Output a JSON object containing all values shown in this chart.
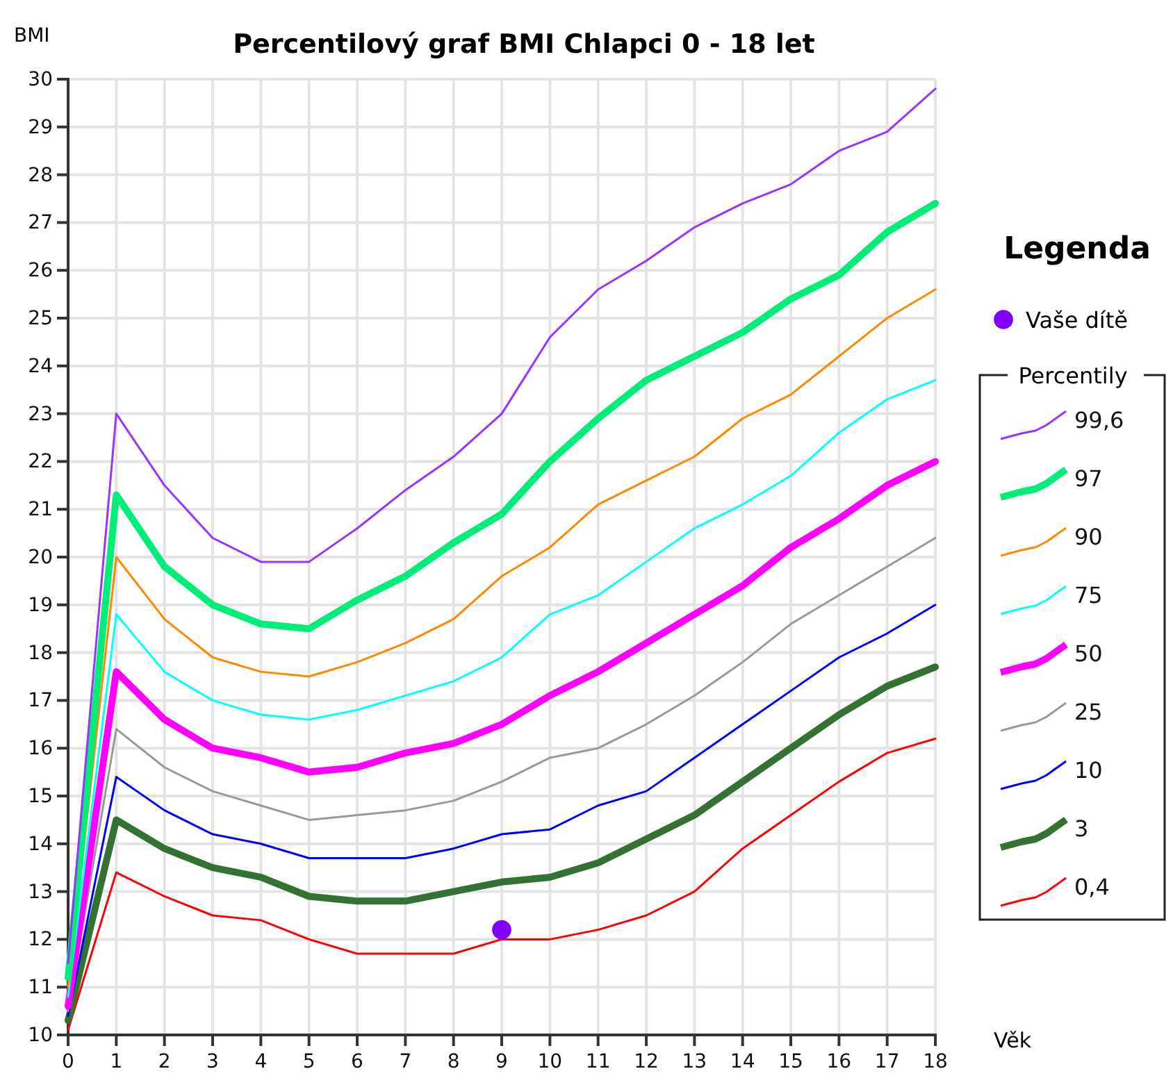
{
  "chart_data": {
    "type": "line",
    "title": "Percentilový graf BMI Chlapci 0 - 18 let",
    "xlabel": "Věk",
    "ylabel": "BMI",
    "legend_title": "Legenda",
    "annotations": [
      "Percentily"
    ],
    "x": [
      0,
      1,
      2,
      3,
      4,
      5,
      6,
      7,
      8,
      9,
      10,
      11,
      12,
      13,
      14,
      15,
      16,
      17,
      18
    ],
    "xlim": [
      0,
      18
    ],
    "xticks": [
      0,
      1,
      2,
      3,
      4,
      5,
      6,
      7,
      8,
      9,
      10,
      11,
      12,
      13,
      14,
      15,
      16,
      17,
      18
    ],
    "ylim": [
      10,
      30
    ],
    "yticks": [
      10,
      11,
      12,
      13,
      14,
      15,
      16,
      17,
      18,
      19,
      20,
      21,
      22,
      23,
      24,
      25,
      26,
      27,
      28,
      29,
      30
    ],
    "grid": true,
    "legend": "right",
    "marker": "none",
    "line_style": "solid",
    "series": [
      {
        "name": "Vaše dítě",
        "type": "scatter",
        "marker": "circle",
        "color": "#7f00ff",
        "x": [
          9
        ],
        "values": [
          12.2
        ]
      },
      {
        "name": "99,6",
        "color": "#9933ff",
        "values": [
          11.5,
          23.0,
          21.5,
          20.4,
          19.9,
          19.9,
          20.6,
          21.4,
          22.1,
          23.0,
          24.6,
          25.6,
          26.2,
          26.9,
          27.4,
          27.8,
          28.5,
          28.9,
          29.8
        ]
      },
      {
        "name": "97",
        "color": "#00ee77",
        "values": [
          11.2,
          21.3,
          19.8,
          19.0,
          18.6,
          18.5,
          19.1,
          19.6,
          20.3,
          20.9,
          22.0,
          22.9,
          23.7,
          24.2,
          24.7,
          25.4,
          25.9,
          26.8,
          27.4
        ]
      },
      {
        "name": "90",
        "color": "#ff8800",
        "values": [
          11.0,
          20.0,
          18.7,
          17.9,
          17.6,
          17.5,
          17.8,
          18.2,
          18.7,
          19.6,
          20.2,
          21.1,
          21.6,
          22.1,
          22.9,
          23.4,
          24.2,
          25.0,
          25.6
        ]
      },
      {
        "name": "75",
        "color": "#00ffff",
        "values": [
          10.8,
          18.8,
          17.6,
          17.0,
          16.7,
          16.6,
          16.8,
          17.1,
          17.4,
          17.9,
          18.8,
          19.2,
          19.9,
          20.6,
          21.1,
          21.7,
          22.6,
          23.3,
          23.7
        ]
      },
      {
        "name": "50",
        "color": "#ff00ff",
        "values": [
          10.6,
          17.6,
          16.6,
          16.0,
          15.8,
          15.5,
          15.6,
          15.9,
          16.1,
          16.5,
          17.1,
          17.6,
          18.2,
          18.8,
          19.4,
          20.2,
          20.8,
          21.5,
          22.0
        ]
      },
      {
        "name": "25",
        "color": "#999999",
        "values": [
          10.5,
          16.4,
          15.6,
          15.1,
          14.8,
          14.5,
          14.6,
          14.7,
          14.9,
          15.3,
          15.8,
          16.0,
          16.5,
          17.1,
          17.8,
          18.6,
          19.2,
          19.8,
          20.4
        ]
      },
      {
        "name": "10",
        "color": "#0000ff",
        "values": [
          10.4,
          15.4,
          14.7,
          14.2,
          14.0,
          13.7,
          13.7,
          13.7,
          13.9,
          14.2,
          14.3,
          14.8,
          15.1,
          15.8,
          16.5,
          17.2,
          17.9,
          18.4,
          19.0
        ]
      },
      {
        "name": "3",
        "color": "#347234",
        "values": [
          10.3,
          14.5,
          13.9,
          13.5,
          13.3,
          12.9,
          12.8,
          12.8,
          13.0,
          13.2,
          13.3,
          13.6,
          14.1,
          14.6,
          15.3,
          16.0,
          16.7,
          17.3,
          17.7
        ]
      },
      {
        "name": "0,4",
        "color": "#ff0000",
        "values": [
          10.1,
          13.4,
          12.9,
          12.5,
          12.4,
          12.0,
          11.7,
          11.7,
          11.7,
          12.0,
          12.0,
          12.2,
          12.5,
          13.0,
          13.9,
          14.6,
          15.3,
          15.9,
          16.2
        ]
      }
    ]
  }
}
